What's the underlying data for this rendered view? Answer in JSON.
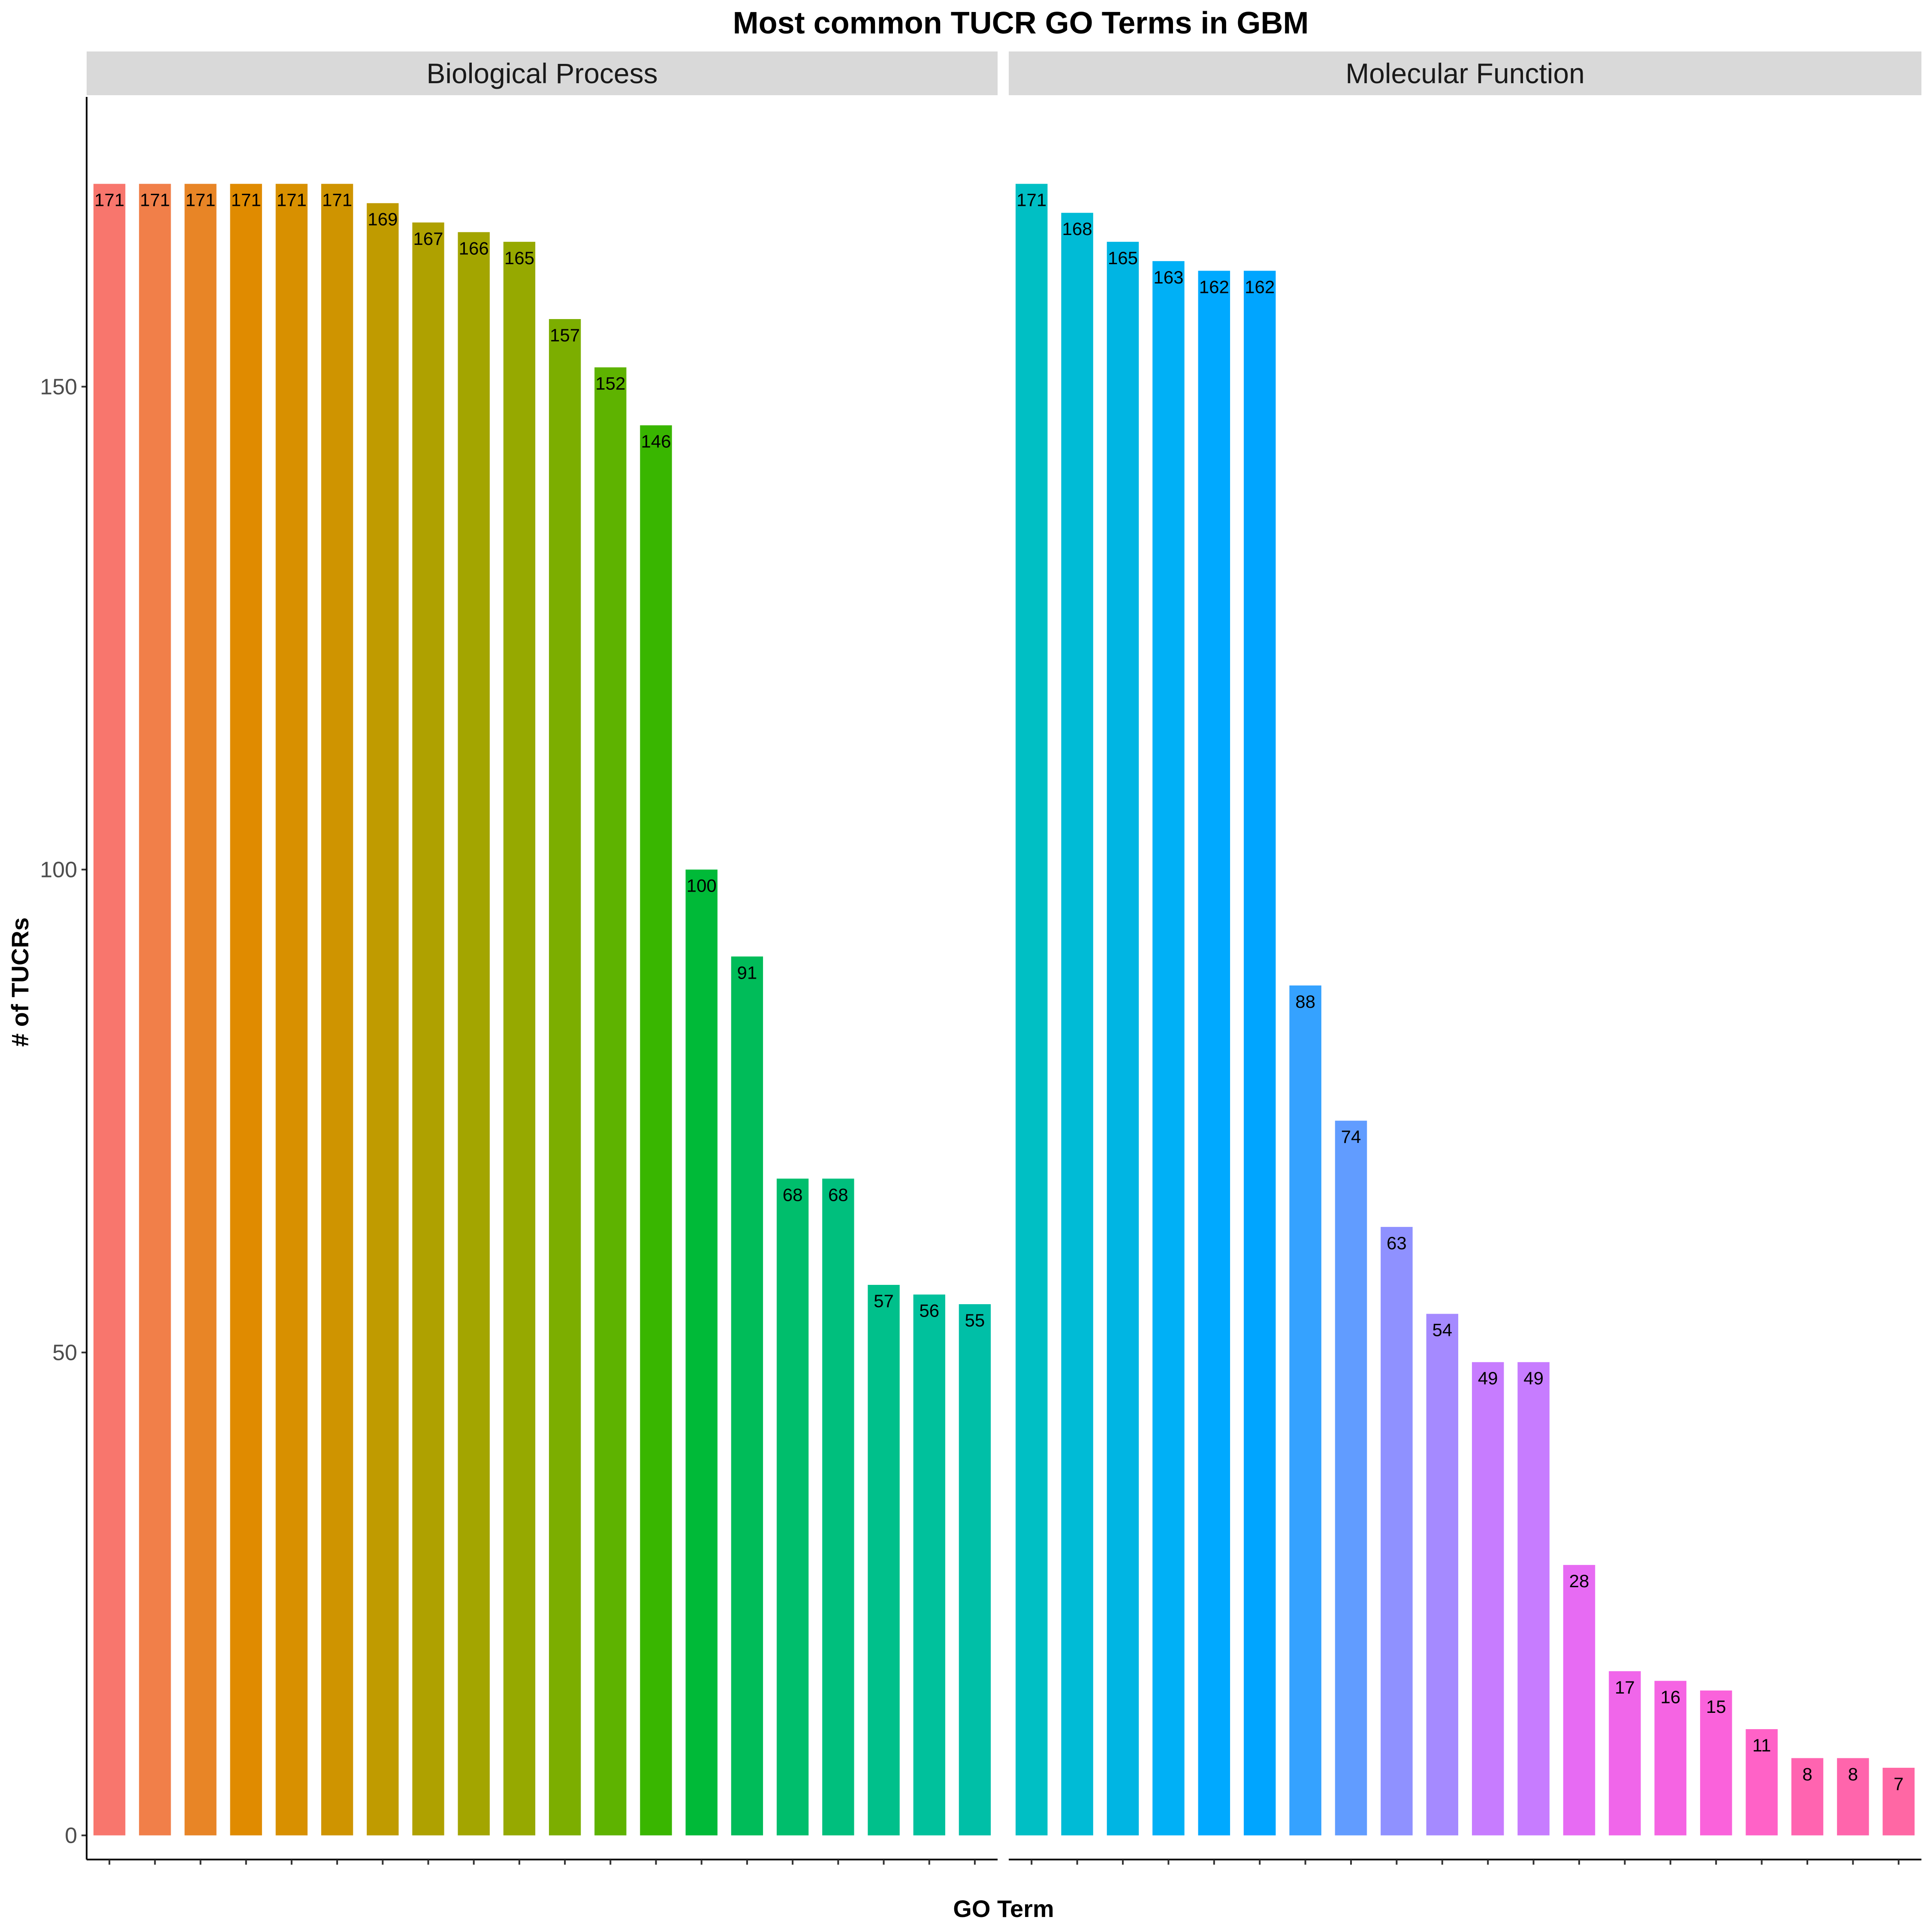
{
  "chart_data": {
    "type": "bar",
    "title": "Most common TUCR GO Terms in GBM",
    "xlabel": "GO Term",
    "ylabel": "# of TUCRs",
    "ylim": [
      -2.5,
      180
    ],
    "yticks": [
      0,
      50,
      100,
      150
    ],
    "grid": false,
    "legend": "none",
    "facets": [
      {
        "name": "Biological Process",
        "values": [
          171,
          171,
          171,
          171,
          171,
          171,
          169,
          167,
          166,
          165,
          157,
          152,
          146,
          100,
          91,
          68,
          68,
          57,
          56,
          55
        ],
        "colors": [
          "#F8766D",
          "#F17F49",
          "#E88526",
          "#E08B00",
          "#D89000",
          "#CF9400",
          "#C09B00",
          "#AFA100",
          "#A3A500",
          "#96A900",
          "#7CAE00",
          "#5EB300",
          "#39B600",
          "#00BA38",
          "#00BC59",
          "#00BE6C",
          "#00BF7D",
          "#00C08B",
          "#00C19C",
          "#00BFA7"
        ]
      },
      {
        "name": "Molecular Function",
        "values": [
          171,
          168,
          165,
          163,
          162,
          162,
          88,
          74,
          63,
          54,
          49,
          49,
          28,
          17,
          16,
          15,
          11,
          8,
          8,
          7
        ],
        "colors": [
          "#00BFC4",
          "#00BBD6",
          "#00B5E3",
          "#00B0F6",
          "#00A9FF",
          "#00A5FF",
          "#35A2FF",
          "#619CFF",
          "#8F91FF",
          "#A58AFF",
          "#C77CFF",
          "#C77CFF",
          "#E76BF3",
          "#F066EA",
          "#F564E3",
          "#FA62DB",
          "#FF62C7",
          "#FF64B0",
          "#FF65AC",
          "#FF67A4"
        ]
      }
    ]
  }
}
